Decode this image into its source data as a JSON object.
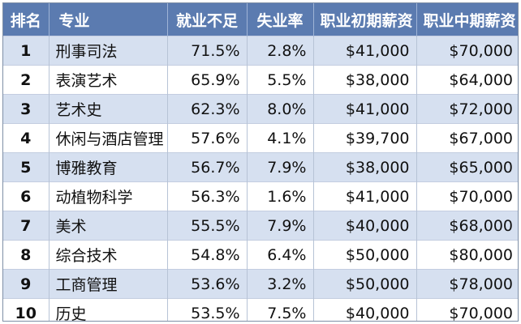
{
  "table": {
    "headers": {
      "rank": "排名",
      "major": "专业",
      "underemployed": "就业不足",
      "unemployment": "失业率",
      "early_salary": "职业初期薪资",
      "mid_salary": "职业中期薪资"
    },
    "rows": [
      {
        "rank": "1",
        "major": "刑事司法",
        "underemployed": "71.5%",
        "unemployment": "2.8%",
        "early_salary": "$41,000",
        "mid_salary": "$70,000"
      },
      {
        "rank": "2",
        "major": "表演艺术",
        "underemployed": "65.9%",
        "unemployment": "5.5%",
        "early_salary": "$38,000",
        "mid_salary": "$64,000"
      },
      {
        "rank": "3",
        "major": "艺术史",
        "underemployed": "62.3%",
        "unemployment": "8.0%",
        "early_salary": "$41,000",
        "mid_salary": "$72,000"
      },
      {
        "rank": "4",
        "major": "休闲与酒店管理",
        "underemployed": "57.6%",
        "unemployment": "4.1%",
        "early_salary": "$39,700",
        "mid_salary": "$67,000"
      },
      {
        "rank": "5",
        "major": "博雅教育",
        "underemployed": "56.7%",
        "unemployment": "7.9%",
        "early_salary": "$38,000",
        "mid_salary": "$65,000"
      },
      {
        "rank": "6",
        "major": "动植物科学",
        "underemployed": "56.3%",
        "unemployment": "1.6%",
        "early_salary": "$41,000",
        "mid_salary": "$70,000"
      },
      {
        "rank": "7",
        "major": "美术",
        "underemployed": "55.5%",
        "unemployment": "7.9%",
        "early_salary": "$40,000",
        "mid_salary": "$68,000"
      },
      {
        "rank": "8",
        "major": "综合技术",
        "underemployed": "54.8%",
        "unemployment": "6.4%",
        "early_salary": "$50,000",
        "mid_salary": "$80,000"
      },
      {
        "rank": "9",
        "major": "工商管理",
        "underemployed": "53.6%",
        "unemployment": "3.2%",
        "early_salary": "$50,000",
        "mid_salary": "$78,000"
      },
      {
        "rank": "10",
        "major": "历史",
        "underemployed": "53.5%",
        "unemployment": "7.5%",
        "early_salary": "$40,000",
        "mid_salary": "$70,000"
      }
    ]
  },
  "colors": {
    "header_bg": "#5b7bb0",
    "row_alt_bg": "#d6e0f0",
    "row_bg": "#ffffff"
  }
}
